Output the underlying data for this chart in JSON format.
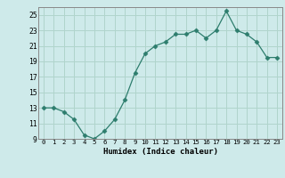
{
  "x": [
    0,
    1,
    2,
    3,
    4,
    5,
    6,
    7,
    8,
    9,
    10,
    11,
    12,
    13,
    14,
    15,
    16,
    17,
    18,
    19,
    20,
    21,
    22,
    23
  ],
  "y": [
    13,
    13,
    12.5,
    11.5,
    9.5,
    9,
    10,
    11.5,
    14,
    17.5,
    20,
    21,
    21.5,
    22.5,
    22.5,
    23,
    22,
    23,
    25.5,
    23,
    22.5,
    21.5,
    19.5,
    19.5
  ],
  "xlabel": "Humidex (Indice chaleur)",
  "ylim": [
    9,
    26
  ],
  "xlim": [
    -0.5,
    23.5
  ],
  "yticks": [
    9,
    11,
    13,
    15,
    17,
    19,
    21,
    23,
    25
  ],
  "xtick_labels": [
    "0",
    "1",
    "2",
    "3",
    "4",
    "5",
    "6",
    "7",
    "8",
    "9",
    "10",
    "11",
    "12",
    "13",
    "14",
    "15",
    "16",
    "17",
    "18",
    "19",
    "20",
    "21",
    "22",
    "23"
  ],
  "line_color": "#2d7d6d",
  "marker": "D",
  "marker_size": 2.5,
  "bg_color": "#ceeaea",
  "grid_color": "#b0d4cc",
  "font_family": "monospace"
}
